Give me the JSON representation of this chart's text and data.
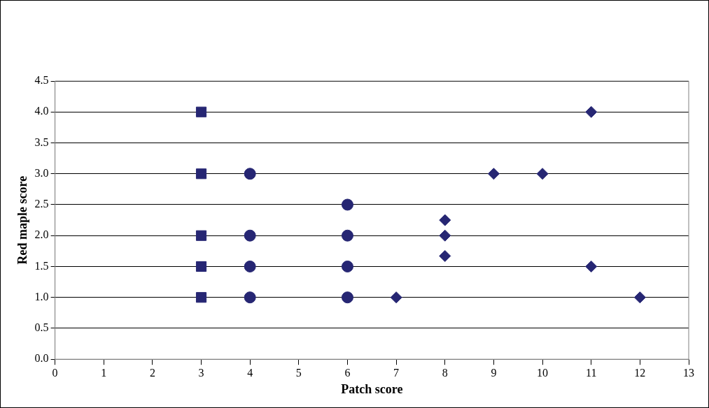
{
  "chart_data": {
    "type": "scatter",
    "xlabel": "Patch score",
    "ylabel": "Red maple score",
    "xlim": [
      0,
      13
    ],
    "xticks": [
      0,
      1,
      2,
      3,
      4,
      5,
      6,
      7,
      8,
      9,
      10,
      11,
      12,
      13
    ],
    "ylim": [
      0,
      4.5
    ],
    "yticks": [
      {
        "value": 0,
        "label": "0.0"
      },
      {
        "value": 0.5,
        "label": "0.5"
      },
      {
        "value": 1,
        "label": "1.0"
      },
      {
        "value": 1.5,
        "label": "1.5"
      },
      {
        "value": 2,
        "label": "2.0"
      },
      {
        "value": 2.5,
        "label": "2.5"
      },
      {
        "value": 3,
        "label": "3.0"
      },
      {
        "value": 3.5,
        "label": "3.5"
      },
      {
        "value": 4,
        "label": "4.0"
      },
      {
        "value": 4.5,
        "label": "4.5"
      }
    ],
    "grid": "y",
    "legend": false,
    "series": [
      {
        "color": "#262673",
        "marker": "square",
        "x": [
          3,
          3,
          3,
          3,
          3
        ],
        "values": [
          4,
          3,
          2,
          1.5,
          1
        ]
      },
      {
        "color": "#262673",
        "marker": "circle",
        "x": [
          4,
          4,
          4,
          4,
          6,
          6,
          6,
          6
        ],
        "values": [
          3,
          2,
          1.5,
          1,
          2.5,
          2,
          1.5,
          1
        ]
      },
      {
        "color": "#262673",
        "marker": "diamond",
        "x": [
          7,
          8,
          8,
          8,
          9,
          10,
          11,
          11,
          12
        ],
        "values": [
          1,
          2.25,
          2,
          1.67,
          3,
          3,
          4,
          1.5,
          1
        ]
      }
    ]
  }
}
